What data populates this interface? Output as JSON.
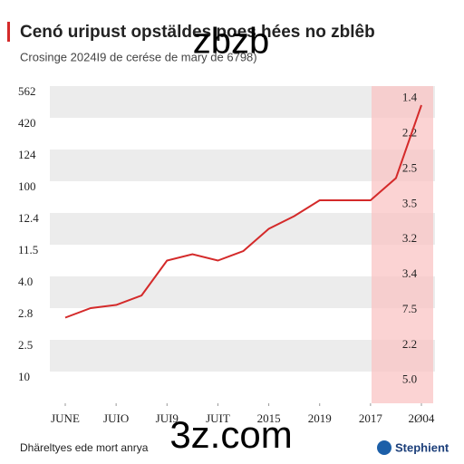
{
  "chart_data": {
    "type": "line",
    "title": "Cenó uripust opstäldes poes hées no zblêb",
    "subtitle": "Crosinge 2024I9 de cerése de mary de 6798)",
    "x": [
      0,
      1,
      2,
      3,
      4,
      5,
      6,
      7,
      8,
      9,
      10,
      11,
      12,
      13,
      14
    ],
    "xlim": [
      0,
      14
    ],
    "xticks": [
      {
        "value": 0,
        "label": "JUNE"
      },
      {
        "value": 2,
        "label": "JUIO"
      },
      {
        "value": 4,
        "label": "JUI9"
      },
      {
        "value": 6,
        "label": "JUIT"
      },
      {
        "value": 8,
        "label": "2015"
      },
      {
        "value": 10,
        "label": "2019"
      },
      {
        "value": 12,
        "label": "2017"
      },
      {
        "value": 14,
        "label": "2Ø04"
      }
    ],
    "ylim": [
      0,
      100
    ],
    "y_axis_labels": [
      "562",
      "420",
      "124",
      "100",
      "12.4",
      "11.5",
      "4.0",
      "2.8",
      "2.5",
      "10"
    ],
    "annotations": [
      "1.4",
      "2.2",
      "2.5",
      "3.5",
      "3.2",
      "3.4",
      "7.5",
      "2.2",
      "5.0"
    ],
    "series": [
      {
        "name": "series",
        "color": "#d42a2a",
        "values": [
          27,
          30,
          31,
          34,
          45,
          47,
          45,
          48,
          55,
          59,
          64,
          64,
          64,
          71,
          94
        ]
      }
    ],
    "footer": "Dhäreltyes ede mort anrya",
    "logo": "Stephient",
    "watermarks": [
      "zbzb",
      "3z.com"
    ]
  }
}
